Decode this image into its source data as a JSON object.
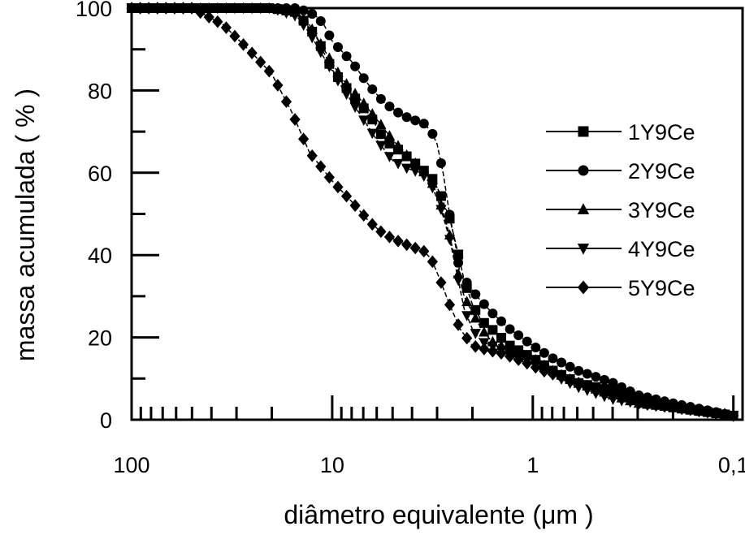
{
  "chart_data": {
    "type": "line",
    "title": "",
    "xlabel": "diâmetro equivalente (μm )",
    "ylabel": "massa acumulada ( % )",
    "x_scale": "log",
    "x_reversed": true,
    "xlim": [
      100,
      0.09
    ],
    "ylim": [
      0,
      100
    ],
    "x_ticks": [
      100,
      10,
      1,
      0.1
    ],
    "x_tick_labels": [
      "100",
      "10",
      "1",
      "0,1"
    ],
    "y_ticks": [
      0,
      20,
      40,
      60,
      80,
      100
    ],
    "y_tick_labels": [
      "0",
      "20",
      "40",
      "60",
      "80",
      "100"
    ],
    "grid": false,
    "legend_position": "right",
    "series": [
      {
        "name": "1Y9Ce",
        "marker": "square",
        "x": [
          100,
          40,
          20,
          15,
          12,
          10,
          8,
          6.5,
          5.5,
          4.5,
          3.8,
          3.2,
          2.9,
          2.6,
          2.4,
          2.2,
          2.0,
          1.8,
          1.6,
          1.3,
          1.0,
          0.8,
          0.6,
          0.4,
          0.3,
          0.2,
          0.1
        ],
        "y": [
          100,
          100,
          100,
          99,
          93,
          85,
          79,
          74,
          68,
          65,
          62,
          59,
          55,
          49,
          42,
          34,
          28,
          24,
          22,
          18,
          15,
          12,
          9,
          7,
          5,
          3,
          1
        ]
      },
      {
        "name": "2Y9Ce",
        "marker": "circle",
        "x": [
          100,
          30,
          15,
          13,
          12,
          11,
          10,
          8,
          6.5,
          5.5,
          4.5,
          4.0,
          3.5,
          3.2,
          3.0,
          2.8,
          2.6,
          2.4,
          2.3,
          2.1,
          1.9,
          1.6,
          1.3,
          1.0,
          0.8,
          0.6,
          0.4,
          0.3,
          0.2,
          0.1
        ],
        "y": [
          100,
          100,
          100,
          99,
          98,
          96,
          92,
          87,
          81,
          77,
          74,
          73,
          72,
          70,
          67,
          60,
          50,
          41,
          35,
          33,
          30,
          26,
          22,
          18,
          15,
          12,
          9,
          6,
          4,
          1
        ]
      },
      {
        "name": "3Y9Ce",
        "marker": "triangle-up",
        "x": [
          100,
          40,
          20,
          15,
          13,
          11,
          9,
          7,
          6,
          5,
          4.2,
          3.6,
          3.2,
          2.9,
          2.6,
          2.4,
          2.2,
          2.0,
          1.8,
          1.6,
          1.3,
          1.0,
          0.8,
          0.6,
          0.4,
          0.3,
          0.2,
          0.1
        ],
        "y": [
          100,
          100,
          100,
          99,
          96,
          90,
          83,
          77,
          73,
          68,
          64,
          61,
          58,
          53,
          45,
          37,
          30,
          26,
          22,
          19,
          17,
          15,
          12,
          9,
          6,
          4,
          3,
          1
        ]
      },
      {
        "name": "4Y9Ce",
        "marker": "triangle-down",
        "x": [
          100,
          40,
          20,
          15,
          13,
          11,
          9,
          7,
          6,
          5,
          4.2,
          3.6,
          3.2,
          2.9,
          2.6,
          2.4,
          2.2,
          2.0,
          1.8,
          1.6,
          1.3,
          1.0,
          0.8,
          0.6,
          0.4,
          0.3,
          0.2,
          0.1
        ],
        "y": [
          100,
          100,
          100,
          98,
          94,
          88,
          81,
          73,
          68,
          63,
          61,
          60,
          57,
          52,
          44,
          36,
          27,
          22,
          19,
          18,
          16,
          14,
          11,
          8,
          5,
          4,
          3,
          1
        ]
      },
      {
        "name": "5Y9Ce",
        "marker": "diamond",
        "x": [
          100,
          50,
          35,
          25,
          20,
          16,
          13,
          10,
          8,
          6.5,
          5.5,
          4.5,
          4.0,
          3.5,
          3.2,
          2.9,
          2.6,
          2.3,
          2.0,
          1.7,
          1.4,
          1.1,
          0.9,
          0.6,
          0.4,
          0.3,
          0.2,
          0.1
        ],
        "y": [
          100,
          100,
          96,
          89,
          84,
          75,
          65,
          58,
          53,
          48,
          45,
          43,
          42,
          41,
          39,
          34,
          28,
          22,
          18,
          17,
          16,
          14,
          12,
          9,
          6,
          4,
          3,
          1
        ]
      }
    ]
  }
}
